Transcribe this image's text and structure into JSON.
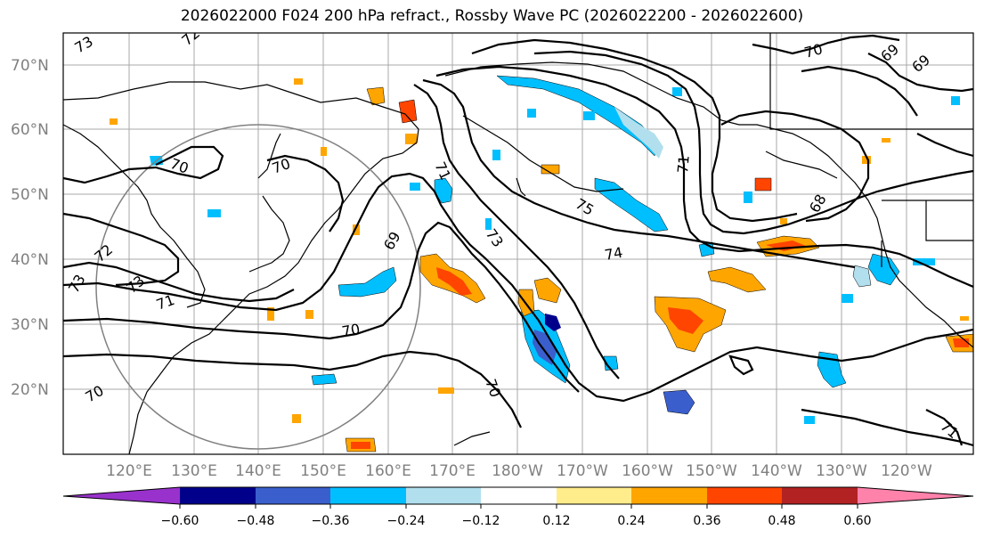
{
  "title": "2026022000 F024 200 hPa refract., Rossby Wave PC (2026022200 - 2026022600)",
  "map": {
    "lat_labels": [
      "70°N",
      "60°N",
      "50°N",
      "40°N",
      "30°N",
      "20°N"
    ],
    "lon_labels": [
      "120°E",
      "130°E",
      "140°E",
      "150°E",
      "160°E",
      "170°E",
      "180°W",
      "170°W",
      "160°W",
      "150°W",
      "140°W",
      "130°W",
      "120°W"
    ],
    "contour_labels": [
      "73",
      "72",
      "70",
      "70",
      "72",
      "73",
      "73",
      "71",
      "69",
      "70",
      "70",
      "70",
      "71",
      "73",
      "75",
      "74",
      "71",
      "70",
      "69",
      "69",
      "68",
      "71"
    ],
    "colors": {
      "purple": "#9932cc",
      "navy": "#00008b",
      "blue": "#3a5fcd",
      "deepskyblue": "#00bfff",
      "lightblue": "#b2dfee",
      "white": "#ffffff",
      "yellow": "#ffec8b",
      "orange": "#ffa500",
      "orangered": "#ff4500",
      "firebrick": "#b22222",
      "pink": "#ff82ab"
    }
  },
  "colorbar": {
    "ticks": [
      "−0.60",
      "−0.48",
      "−0.36",
      "−0.24",
      "−0.12",
      "0.12",
      "0.24",
      "0.36",
      "0.48",
      "0.60"
    ],
    "colors": [
      "#9932cc",
      "#00008b",
      "#3a5fcd",
      "#00bfff",
      "#b2dfee",
      "#ffffff",
      "#ffec8b",
      "#ffa500",
      "#ff4500",
      "#b22222",
      "#ff82ab"
    ]
  }
}
